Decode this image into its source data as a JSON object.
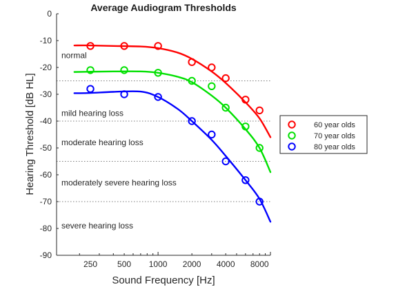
{
  "chart_data": {
    "type": "scatter",
    "title": "Average Audiogram Thresholds",
    "xlabel": "Sound Frequency [Hz]",
    "ylabel": "Hearing Threshold [dB HL]",
    "xscale": "log",
    "xlim": [
      125,
      10000
    ],
    "ylim": [
      -90,
      0
    ],
    "xticks": [
      250,
      500,
      1000,
      2000,
      4000,
      8000
    ],
    "xtick_labels": [
      "250",
      "500",
      "1000",
      "2000",
      "4000",
      "8000"
    ],
    "yticks": [
      0,
      -10,
      -20,
      -30,
      -40,
      -50,
      -60,
      -70,
      -80,
      -90
    ],
    "ytick_labels": [
      "0",
      "-10",
      "-20",
      "-30",
      "-40",
      "-50",
      "-60",
      "-70",
      "-80",
      "-90"
    ],
    "grid": false,
    "legend": {
      "placement": "right"
    },
    "thresholds": [
      -25,
      -40,
      -55,
      -70
    ],
    "regions": [
      {
        "label": "normal",
        "y": -15.5
      },
      {
        "label": "mild hearing loss",
        "y": -37
      },
      {
        "label": "moderate hearing loss",
        "y": -48
      },
      {
        "label": "moderately severe hearing loss",
        "y": -63
      },
      {
        "label": "severe hearing loss",
        "y": -79
      }
    ],
    "series": [
      {
        "name": "60 year olds",
        "color": "#ff0000",
        "points": [
          {
            "x": 250,
            "y": -12
          },
          {
            "x": 500,
            "y": -12
          },
          {
            "x": 1000,
            "y": -12
          },
          {
            "x": 2000,
            "y": -18
          },
          {
            "x": 3000,
            "y": -20
          },
          {
            "x": 4000,
            "y": -24
          },
          {
            "x": 6000,
            "y": -32
          },
          {
            "x": 8000,
            "y": -36
          }
        ],
        "fit": [
          {
            "x": 180,
            "y": -11.8
          },
          {
            "x": 250,
            "y": -11.8
          },
          {
            "x": 400,
            "y": -12
          },
          {
            "x": 700,
            "y": -12.2
          },
          {
            "x": 1000,
            "y": -12.8
          },
          {
            "x": 1500,
            "y": -14.5
          },
          {
            "x": 2000,
            "y": -16.8
          },
          {
            "x": 3000,
            "y": -21.5
          },
          {
            "x": 4000,
            "y": -25.8
          },
          {
            "x": 6000,
            "y": -33
          },
          {
            "x": 8000,
            "y": -39
          },
          {
            "x": 10000,
            "y": -46
          }
        ]
      },
      {
        "name": "70 year olds",
        "color": "#00e000",
        "points": [
          {
            "x": 250,
            "y": -21
          },
          {
            "x": 500,
            "y": -21
          },
          {
            "x": 1000,
            "y": -22
          },
          {
            "x": 2000,
            "y": -25
          },
          {
            "x": 3000,
            "y": -27
          },
          {
            "x": 4000,
            "y": -35
          },
          {
            "x": 6000,
            "y": -42
          },
          {
            "x": 8000,
            "y": -50
          }
        ],
        "fit": [
          {
            "x": 180,
            "y": -21.7
          },
          {
            "x": 250,
            "y": -21.6
          },
          {
            "x": 400,
            "y": -21.5
          },
          {
            "x": 700,
            "y": -21.5
          },
          {
            "x": 1000,
            "y": -22
          },
          {
            "x": 1500,
            "y": -23.5
          },
          {
            "x": 2000,
            "y": -25.5
          },
          {
            "x": 3000,
            "y": -30.5
          },
          {
            "x": 4000,
            "y": -35
          },
          {
            "x": 6000,
            "y": -43
          },
          {
            "x": 8000,
            "y": -50
          },
          {
            "x": 10000,
            "y": -59
          }
        ]
      },
      {
        "name": "80 year olds",
        "color": "#0000ff",
        "points": [
          {
            "x": 250,
            "y": -28
          },
          {
            "x": 500,
            "y": -30
          },
          {
            "x": 1000,
            "y": -31
          },
          {
            "x": 2000,
            "y": -40
          },
          {
            "x": 3000,
            "y": -45
          },
          {
            "x": 4000,
            "y": -55
          },
          {
            "x": 6000,
            "y": -62
          },
          {
            "x": 8000,
            "y": -70
          }
        ],
        "fit": [
          {
            "x": 180,
            "y": -29.6
          },
          {
            "x": 250,
            "y": -29.5
          },
          {
            "x": 400,
            "y": -29.1
          },
          {
            "x": 700,
            "y": -29
          },
          {
            "x": 1000,
            "y": -31
          },
          {
            "x": 1500,
            "y": -35.5
          },
          {
            "x": 2000,
            "y": -40
          },
          {
            "x": 3000,
            "y": -47
          },
          {
            "x": 4000,
            "y": -53
          },
          {
            "x": 6000,
            "y": -62
          },
          {
            "x": 8000,
            "y": -69
          },
          {
            "x": 10000,
            "y": -77.5
          }
        ]
      }
    ]
  }
}
